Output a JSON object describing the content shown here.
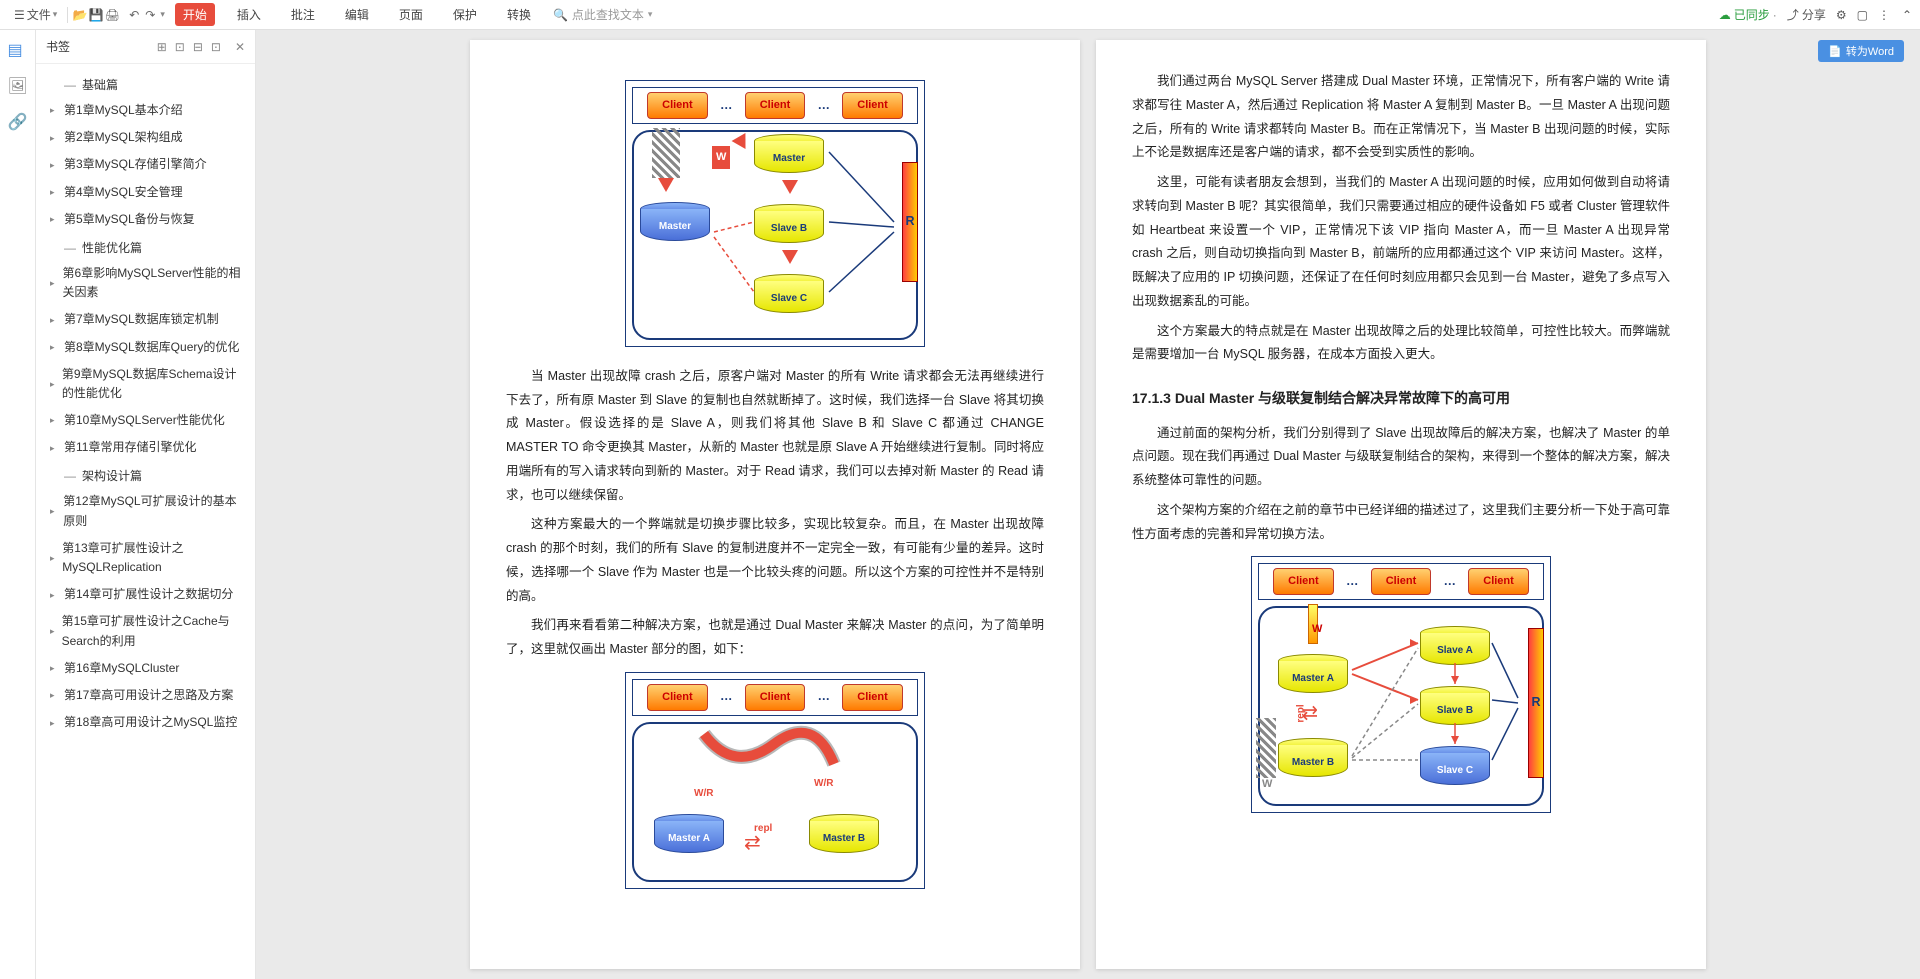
{
  "toolbar": {
    "file_menu": "文件",
    "tabs": [
      "开始",
      "插入",
      "批注",
      "编辑",
      "页面",
      "保护",
      "转换"
    ],
    "active_tab": 0,
    "search_placeholder": "点此查找文本",
    "sync_label": "已同步",
    "share_label": "分享"
  },
  "sidebar": {
    "title": "书签",
    "sections": [
      {
        "type": "section",
        "label": "基础篇"
      },
      {
        "type": "item",
        "label": "第1章MySQL基本介绍"
      },
      {
        "type": "item",
        "label": "第2章MySQL架构组成"
      },
      {
        "type": "item",
        "label": "第3章MySQL存储引擎简介"
      },
      {
        "type": "item",
        "label": "第4章MySQL安全管理"
      },
      {
        "type": "item",
        "label": "第5章MySQL备份与恢复"
      },
      {
        "type": "section",
        "label": "性能优化篇"
      },
      {
        "type": "item",
        "label": "第6章影响MySQLServer性能的相关因素"
      },
      {
        "type": "item",
        "label": "第7章MySQL数据库锁定机制"
      },
      {
        "type": "item",
        "label": "第8章MySQL数据库Query的优化"
      },
      {
        "type": "item",
        "label": "第9章MySQL数据库Schema设计的性能优化"
      },
      {
        "type": "item",
        "label": "第10章MySQLServer性能优化"
      },
      {
        "type": "item",
        "label": "第11章常用存储引擎优化"
      },
      {
        "type": "section",
        "label": "架构设计篇"
      },
      {
        "type": "item",
        "label": "第12章MySQL可扩展设计的基本原则"
      },
      {
        "type": "item",
        "label": "第13章可扩展性设计之MySQLReplication"
      },
      {
        "type": "item",
        "label": "第14章可扩展性设计之数据切分"
      },
      {
        "type": "item",
        "label": "第15章可扩展性设计之Cache与Search的利用"
      },
      {
        "type": "item",
        "label": "第16章MySQLCluster"
      },
      {
        "type": "item",
        "label": "第17章高可用设计之思路及方案"
      },
      {
        "type": "item",
        "label": "第18章高可用设计之MySQL监控"
      }
    ]
  },
  "page_left": {
    "diagram1": {
      "client_label": "Client",
      "nodes": {
        "master": "Master",
        "slaveb": "Slave B",
        "slavec": "Slave C",
        "old": "Master"
      },
      "w_label": "W",
      "r_label": "R"
    },
    "p1": "当 Master 出现故障 crash 之后，原客户端对 Master 的所有 Write 请求都会无法再继续进行下去了，所有原 Master 到 Slave 的复制也自然就断掉了。这时候，我们选择一台 Slave 将其切换成 Master。假设选择的是 Slave A，则我们将其他 Slave B 和 Slave C 都通过 CHANGE MASTER TO 命令更换其 Master，从新的 Master 也就是原 Slave A 开始继续进行复制。同时将应用端所有的写入请求转向到新的 Master。对于 Read 请求，我们可以去掉对新 Master 的 Read 请求，也可以继续保留。",
    "p2": "这种方案最大的一个弊端就是切换步骤比较多，实现比较复杂。而且，在 Master 出现故障 crash 的那个时刻，我们的所有 Slave 的复制进度并不一定完全一致，有可能有少量的差异。这时候，选择哪一个 Slave 作为 Master 也是一个比较头疼的问题。所以这个方案的可控性并不是特别的高。",
    "p3": "我们再来看看第二种解决方案，也就是通过 Dual Master 来解决 Master 的点问，为了简单明了，这里就仅画出 Master 部分的图，如下：",
    "diagram2": {
      "client_label": "Client",
      "mastera": "Master A",
      "masterb": "Master B",
      "wr_label": "W/R",
      "repl_label": "repl"
    }
  },
  "page_right": {
    "p1": "我们通过两台 MySQL Server 搭建成 Dual Master 环境，正常情况下，所有客户端的 Write 请求都写往 Master A，然后通过 Replication 将 Master A 复制到 Master B。一旦 Master A 出现问题之后，所有的 Write 请求都转向 Master B。而在正常情况下，当 Master B 出现问题的时候，实际上不论是数据库还是客户端的请求，都不会受到实质性的影响。",
    "p2": "这里，可能有读者朋友会想到，当我们的 Master A 出现问题的时候，应用如何做到自动将请求转向到 Master B 呢？其实很简单，我们只需要通过相应的硬件设备如 F5 或者 Cluster 管理软件如 Heartbeat 来设置一个 VIP，正常情况下该 VIP 指向 Master A，而一旦 Master A 出现异常 crash 之后，则自动切换指向到 Master B，前端所的应用都通过这个 VIP 来访问 Master。这样，既解决了应用的 IP 切换问题，还保证了在任何时刻应用都只会见到一台 Master，避免了多点写入出现数据紊乱的可能。",
    "p3": "这个方案最大的特点就是在 Master 出现故障之后的处理比较简单，可控性比较大。而弊端就是需要增加一台 MySQL 服务器，在成本方面投入更大。",
    "heading": "17.1.3 Dual Master 与级联复制结合解决异常故障下的高可用",
    "p4": "通过前面的架构分析，我们分别得到了 Slave 出现故障后的解决方案，也解决了 Master 的单点问题。现在我们再通过 Dual Master 与级联复制结合的架构，来得到一个整体的解决方案，解决系统整体可靠性的问题。",
    "p5": "这个架构方案的介绍在之前的章节中已经详细的描述过了，这里我们主要分析一下处于高可靠性方面考虑的完善和异常切换方法。",
    "diagram3": {
      "client_label": "Client",
      "mastera": "Master A",
      "masterb": "Master B",
      "slavea": "Slave A",
      "slaveb": "Slave B",
      "slavec": "Slave C",
      "w_label": "W",
      "r_label": "R",
      "repl_label": "repl"
    }
  },
  "convert_btn": "转为Word",
  "colors": {
    "accent": "#e74c3c",
    "border": "#1a3a7a",
    "yellow_grad_top": "#ffff80",
    "yellow_grad_bot": "#e6e600",
    "blue_grad_top": "#8ab4f8",
    "blue_grad_bot": "#4a6fd8",
    "orange_top": "#ffd070",
    "orange_bot": "#ff7a00"
  }
}
